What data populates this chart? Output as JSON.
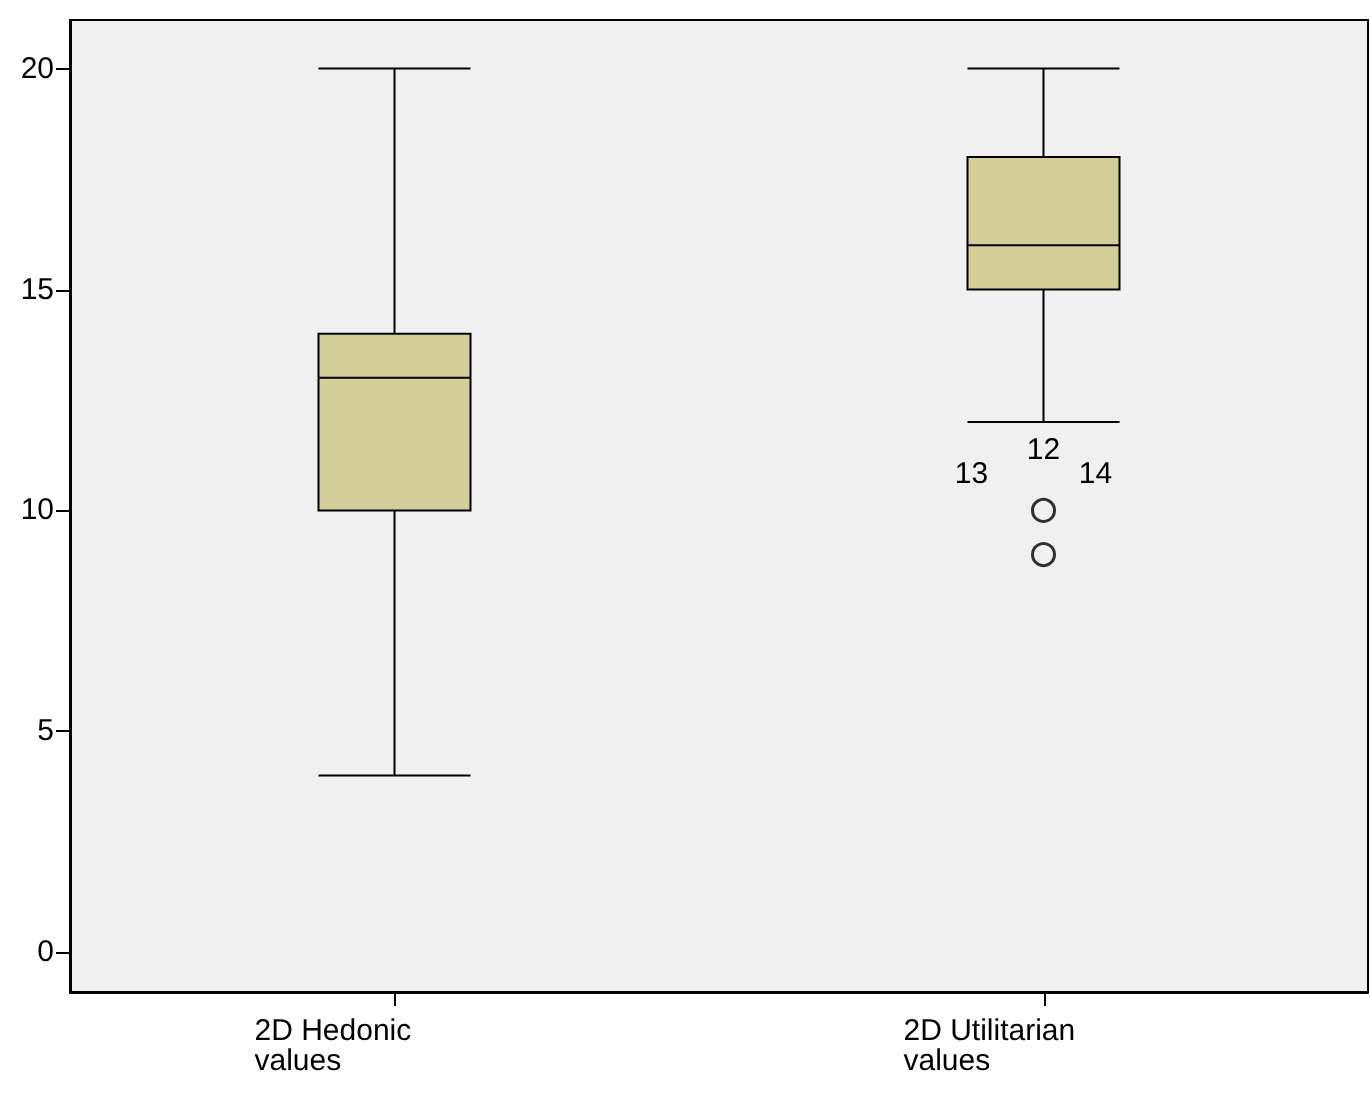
{
  "chart_data": {
    "type": "box",
    "categories": [
      "2D Hedonic values",
      "2D Utilitarian values"
    ],
    "boxes": [
      {
        "low": 4,
        "q1": 10,
        "median": 13,
        "q3": 14,
        "high": 20
      },
      {
        "low": 12,
        "q1": 15,
        "median": 16,
        "q3": 18,
        "high": 20,
        "outliers": [
          10,
          9
        ]
      }
    ],
    "color": "#d4cf98",
    "ylim": [
      -0.9,
      21.1
    ],
    "yticks": [
      0,
      5,
      10,
      15,
      20
    ],
    "grid": false,
    "annotations": [
      "12",
      "13",
      "14"
    ]
  }
}
